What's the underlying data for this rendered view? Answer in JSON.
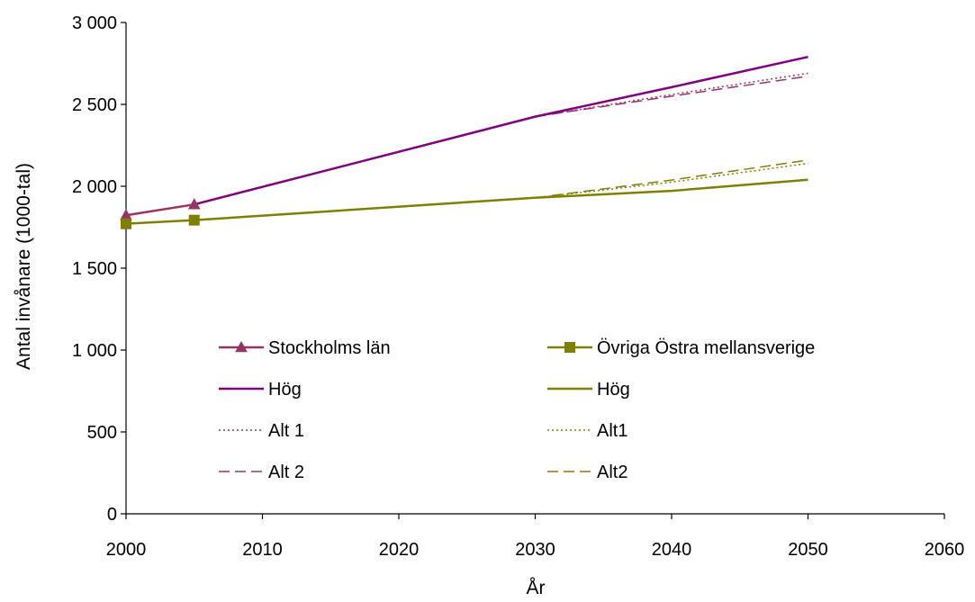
{
  "chart_data": {
    "type": "line",
    "xlabel": "År",
    "ylabel": "Antal invånare (1000-tal)",
    "xlim": [
      2000,
      2060
    ],
    "ylim": [
      0,
      3000
    ],
    "x_ticks": [
      "2000",
      "2010",
      "2020",
      "2030",
      "2040",
      "2050",
      "2060"
    ],
    "y_ticks": [
      "0",
      "500",
      "1 000",
      "1 500",
      "2 000",
      "2 500",
      "3 000"
    ],
    "grid": false,
    "legend_position": "center",
    "series": [
      {
        "name": "Stockholms län",
        "color": "#993366",
        "style": "solid-marker-triangle",
        "points": [
          [
            2000,
            1823
          ],
          [
            2005,
            1889
          ]
        ]
      },
      {
        "name": "Övriga Östra mellansverige",
        "color": "#808000",
        "style": "solid-marker-square",
        "points": [
          [
            2000,
            1771
          ],
          [
            2005,
            1793
          ]
        ]
      },
      {
        "name": "Hög",
        "color": "#800080",
        "style": "solid",
        "points": [
          [
            2005,
            1889
          ],
          [
            2030,
            2425
          ],
          [
            2040,
            2605
          ],
          [
            2050,
            2790
          ]
        ]
      },
      {
        "name": "Hög",
        "color": "#808000",
        "style": "solid",
        "points": [
          [
            2005,
            1793
          ],
          [
            2030,
            1930
          ],
          [
            2040,
            1972
          ],
          [
            2050,
            2040
          ]
        ]
      },
      {
        "name": "Alt 1",
        "color": "#993366",
        "style": "dotted",
        "points": [
          [
            2030,
            2425
          ],
          [
            2040,
            2560
          ],
          [
            2050,
            2690
          ]
        ]
      },
      {
        "name": "Alt1",
        "color": "#808000",
        "style": "dotted",
        "points": [
          [
            2030,
            1930
          ],
          [
            2040,
            2025
          ],
          [
            2050,
            2140
          ]
        ]
      },
      {
        "name": "Alt 2",
        "color": "#993366",
        "style": "dashed",
        "points": [
          [
            2030,
            2425
          ],
          [
            2040,
            2550
          ],
          [
            2050,
            2672
          ]
        ]
      },
      {
        "name": "Alt2",
        "color": "#808000",
        "style": "dashed",
        "points": [
          [
            2030,
            1930
          ],
          [
            2040,
            2038
          ],
          [
            2050,
            2160
          ]
        ]
      }
    ]
  }
}
